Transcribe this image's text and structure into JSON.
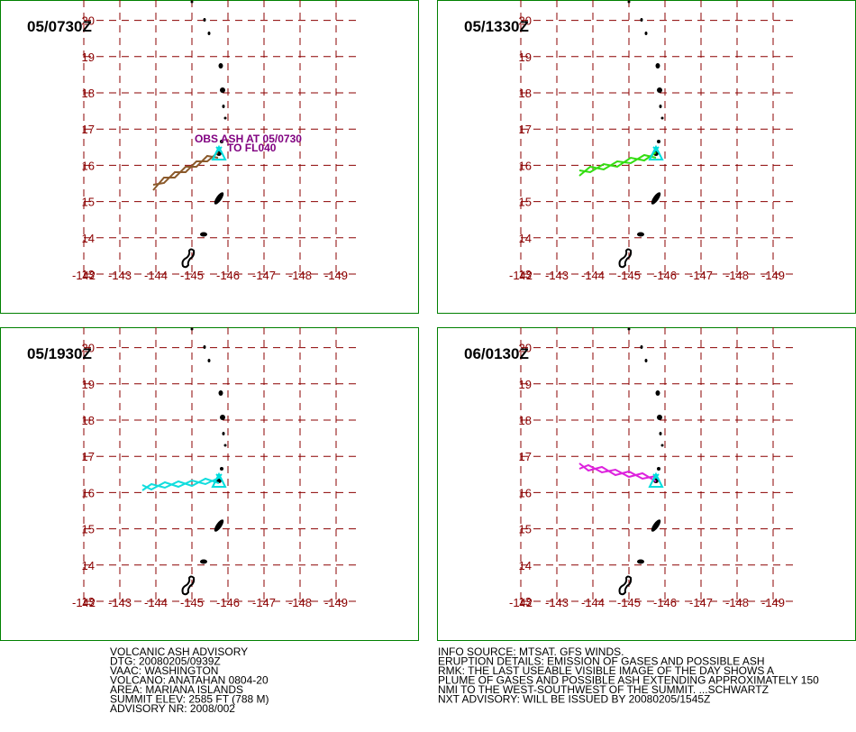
{
  "panels": [
    {
      "time": "05/0730Z",
      "plume_color": "#8b5a2b",
      "annotation": [
        "OBS ASH AT 05/0730",
        "TO FL040"
      ]
    },
    {
      "time": "05/1330Z",
      "plume_color": "#33dd11"
    },
    {
      "time": "05/1930Z",
      "plume_color": "#11dddd"
    },
    {
      "time": "06/0130Z",
      "plume_color": "#dd22dd"
    }
  ],
  "lat_labels": [
    "13",
    "14",
    "15",
    "16",
    "17",
    "18",
    "19",
    "20"
  ],
  "lon_labels": [
    "-142",
    "-143",
    "-144",
    "-145",
    "-146",
    "-147",
    "-148",
    "-149"
  ],
  "advisory_left": [
    "VOLCANIC ASH ADVISORY",
    "DTG: 20080205/0939Z",
    "VAAC: WASHINGTON",
    "VOLCANO: ANATAHAN 0804-20",
    "AREA: MARIANA ISLANDS",
    "SUMMIT ELEV: 2585 FT (788 M)",
    "ADVISORY NR: 2008/002"
  ],
  "advisory_right": [
    "INFO SOURCE: MTSAT. GFS WINDS.",
    "ERUPTION DETAILS: EMISSION OF GASES AND POSSIBLE ASH",
    "RMK: THE LAST USEABLE VISIBLE IMAGE OF THE DAY SHOWS A",
    "PLUME OF GASES AND POSSIBLE ASH EXTENDING APPROXIMATELY 150",
    "NMI TO THE WEST-SOUTHWEST OF THE SUMMIT. ...SCHWARTZ",
    "NXT ADVISORY: WILL BE ISSUED BY 20080205/1545Z"
  ]
}
